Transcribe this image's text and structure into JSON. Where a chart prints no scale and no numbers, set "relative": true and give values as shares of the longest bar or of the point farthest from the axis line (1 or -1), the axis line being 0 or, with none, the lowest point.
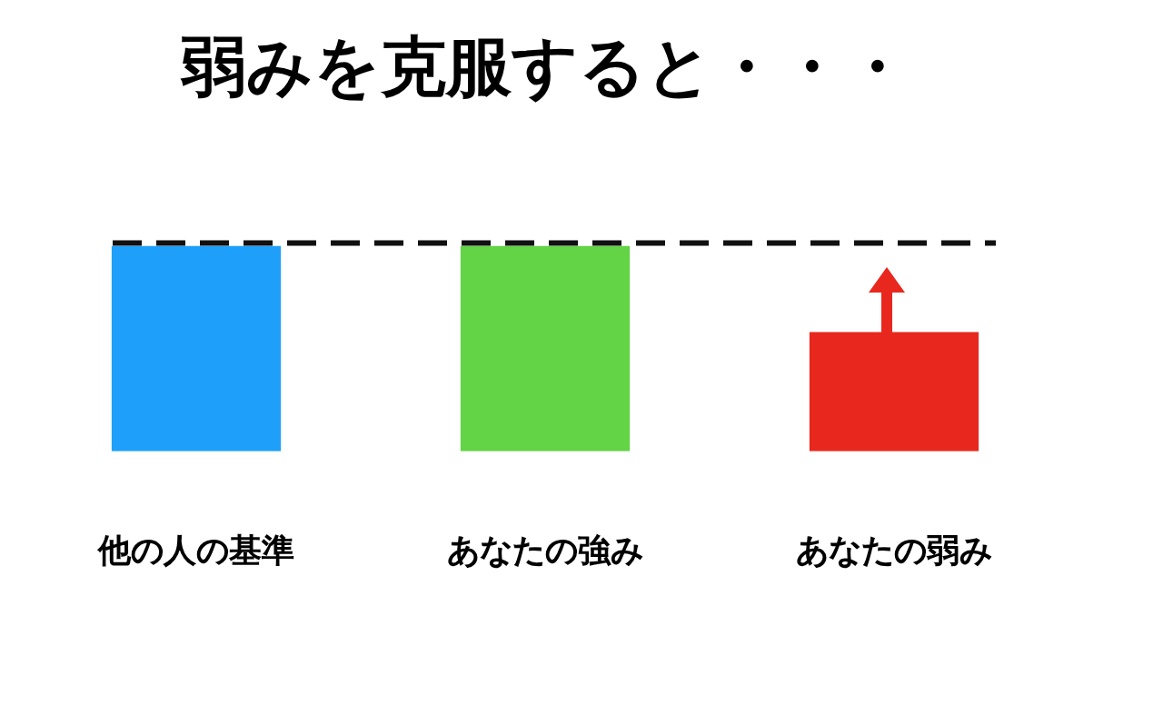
{
  "chart_data": {
    "type": "bar",
    "title": "弱みを克服すると・・・",
    "relative": true,
    "categories": [
      "他の人の基準",
      "あなたの強み",
      "あなたの弱み"
    ],
    "values": [
      1,
      1,
      0.58
    ],
    "colors": [
      "#1ea0fa",
      "#62d445",
      "#e8281e"
    ],
    "ref_lines": [
      {
        "axis": "y",
        "value": 1,
        "color": "#111111",
        "line_style": "dashed"
      }
    ],
    "legend": false,
    "grid": false
  }
}
